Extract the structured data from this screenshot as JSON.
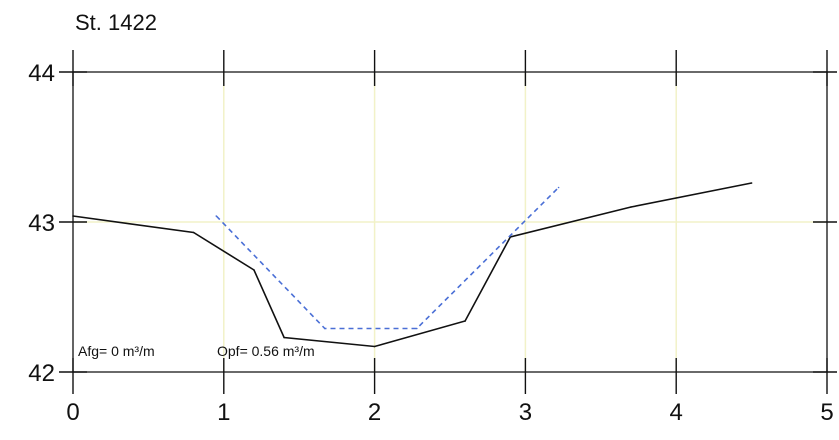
{
  "chart_data": {
    "type": "line",
    "title": "St. 1422",
    "xlabel": "",
    "ylabel": "",
    "xlim": [
      0,
      5
    ],
    "ylim": [
      42,
      44
    ],
    "xticks": [
      "0",
      "1",
      "2",
      "3",
      "4",
      "5"
    ],
    "yticks": [
      "42",
      "43",
      "44"
    ],
    "grid": true,
    "annotations": {
      "afg": "Afg= 0 m³/m",
      "opf": "Opf= 0.56 m³/m"
    },
    "series": [
      {
        "style": "solid",
        "color": "#111111",
        "points": [
          [
            0.0,
            43.04
          ],
          [
            0.8,
            42.93
          ],
          [
            1.2,
            42.68
          ],
          [
            1.4,
            42.23
          ],
          [
            2.0,
            42.17
          ],
          [
            2.6,
            42.34
          ],
          [
            2.9,
            42.9
          ],
          [
            3.7,
            43.1
          ],
          [
            4.5,
            43.26
          ]
        ]
      },
      {
        "style": "dashed",
        "color": "#4a6fd6",
        "points": [
          [
            0.95,
            43.04
          ],
          [
            1.67,
            42.29
          ],
          [
            2.28,
            42.29
          ],
          [
            3.22,
            43.23
          ]
        ]
      }
    ],
    "colors": {
      "axis": "#111111",
      "grid": "#f2f2c8"
    }
  }
}
